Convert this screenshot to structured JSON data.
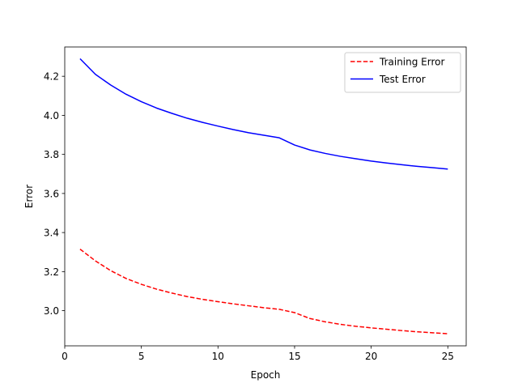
{
  "chart_data": {
    "type": "line",
    "title": "",
    "xlabel": "Epoch",
    "ylabel": "Error",
    "xlim": [
      0,
      26.2
    ],
    "ylim": [
      2.82,
      4.35
    ],
    "xticks": [
      0,
      5,
      10,
      15,
      20,
      25
    ],
    "yticks": [
      3.0,
      3.2,
      3.4,
      3.6,
      3.8,
      4.0,
      4.2
    ],
    "ytick_labels": [
      "3.0",
      "3.2",
      "3.4",
      "3.6",
      "3.8",
      "4.0",
      "4.2"
    ],
    "grid": false,
    "legend_position": "top-right",
    "x": [
      1,
      2,
      3,
      4,
      5,
      6,
      7,
      8,
      9,
      10,
      11,
      12,
      13,
      14,
      15,
      16,
      17,
      18,
      19,
      20,
      21,
      22,
      23,
      24,
      25
    ],
    "series": [
      {
        "name": "Training Error",
        "color": "#ff0000",
        "line_style": "dashed",
        "values": [
          3.315,
          3.255,
          3.205,
          3.165,
          3.135,
          3.11,
          3.09,
          3.072,
          3.058,
          3.046,
          3.035,
          3.025,
          3.015,
          3.007,
          2.99,
          2.96,
          2.943,
          2.93,
          2.92,
          2.912,
          2.905,
          2.898,
          2.892,
          2.887,
          2.882
        ]
      },
      {
        "name": "Test Error",
        "color": "#0000ff",
        "line_style": "solid",
        "values": [
          4.29,
          4.21,
          4.155,
          4.108,
          4.07,
          4.037,
          4.01,
          3.985,
          3.964,
          3.945,
          3.927,
          3.911,
          3.898,
          3.885,
          3.848,
          3.823,
          3.805,
          3.79,
          3.778,
          3.766,
          3.756,
          3.747,
          3.739,
          3.732,
          3.725
        ]
      }
    ]
  }
}
